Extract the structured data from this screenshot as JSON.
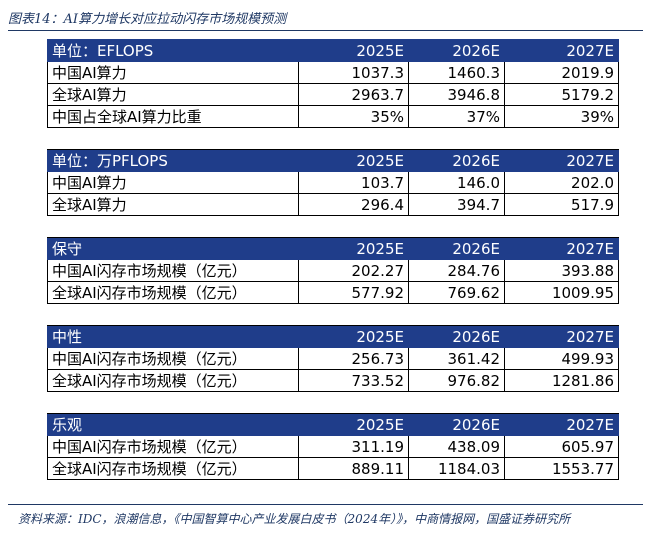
{
  "caption": "图表14：AI算力增长对应拉动闪存市场规模预测",
  "source": "资料来源：IDC，浪潮信息，《中国智算中心产业发展白皮书（2024年）》，中商情报网，国盛证券研究所",
  "sections": [
    {
      "header": [
        "单位：EFLOPS",
        "2025E",
        "2026E",
        "2027E"
      ],
      "rows": [
        [
          "中国AI算力",
          "1037.3",
          "1460.3",
          "2019.9"
        ],
        [
          "全球AI算力",
          "2963.7",
          "3946.8",
          "5179.2"
        ],
        [
          "中国占全球AI算力比重",
          "35%",
          "37%",
          "39%"
        ]
      ]
    },
    {
      "header": [
        "单位：万PFLOPS",
        "2025E",
        "2026E",
        "2027E"
      ],
      "rows": [
        [
          "中国AI算力",
          "103.7",
          "146.0",
          "202.0"
        ],
        [
          "全球AI算力",
          "296.4",
          "394.7",
          "517.9"
        ]
      ]
    },
    {
      "header": [
        "保守",
        "2025E",
        "2026E",
        "2027E"
      ],
      "rows": [
        [
          "中国AI闪存市场规模（亿元）",
          "202.27",
          "284.76",
          "393.88"
        ],
        [
          "全球AI闪存市场规模（亿元）",
          "577.92",
          "769.62",
          "1009.95"
        ]
      ]
    },
    {
      "header": [
        "中性",
        "2025E",
        "2026E",
        "2027E"
      ],
      "rows": [
        [
          "中国AI闪存市场规模（亿元）",
          "256.73",
          "361.42",
          "499.93"
        ],
        [
          "全球AI闪存市场规模（亿元）",
          "733.52",
          "976.82",
          "1281.86"
        ]
      ]
    },
    {
      "header": [
        "乐观",
        "2025E",
        "2026E",
        "2027E"
      ],
      "rows": [
        [
          "中国AI闪存市场规模（亿元）",
          "311.19",
          "438.09",
          "605.97"
        ],
        [
          "全球AI闪存市场规模（亿元）",
          "889.11",
          "1184.03",
          "1553.77"
        ]
      ]
    }
  ]
}
